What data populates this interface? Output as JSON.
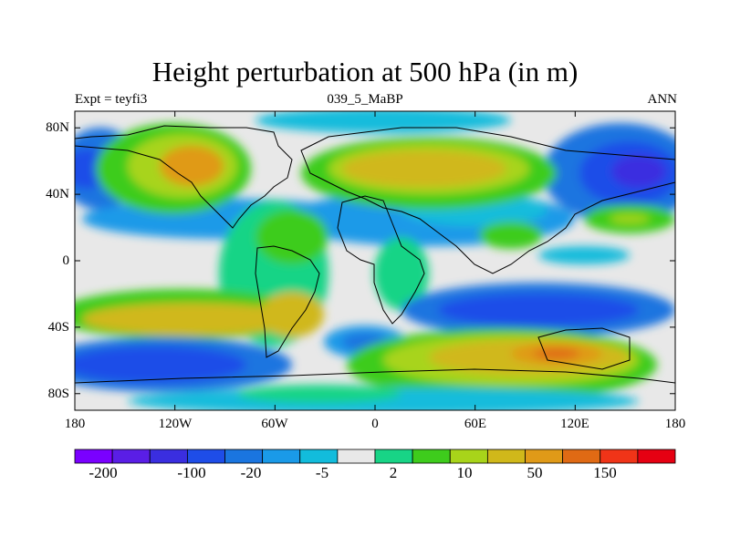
{
  "title": "Height perturbation at 500 hPa (in m)",
  "experiment_label": "Expt = teyfi3",
  "run_name": "039_5_MaBP",
  "season": "ANN",
  "lat_axis": {
    "ticks": [
      "80N",
      "40N",
      "0",
      "40S",
      "80S"
    ],
    "values": [
      80,
      40,
      0,
      -40,
      -80
    ],
    "range": [
      -90,
      90
    ]
  },
  "lon_axis": {
    "ticks": [
      "180",
      "120W",
      "60W",
      "0",
      "60E",
      "120E",
      "180"
    ],
    "values": [
      -180,
      -120,
      -60,
      0,
      60,
      120,
      180
    ],
    "range": [
      -180,
      180
    ]
  },
  "colorbar": {
    "colors": [
      "#7a00ff",
      "#5a1ee6",
      "#3a2ee0",
      "#1e4de8",
      "#1a75e0",
      "#1a9ae8",
      "#12bcdc",
      "#e8e8e8",
      "#18d486",
      "#3ecc1c",
      "#a8d41a",
      "#d0b81a",
      "#e09a18",
      "#e06a14",
      "#f03418",
      "#e60012"
    ],
    "labels": [
      "-200",
      "-100",
      "-20",
      "-5",
      "2",
      "10",
      "50",
      "150"
    ]
  },
  "colors": {
    "axis": "#000000",
    "background": "#ffffff"
  }
}
